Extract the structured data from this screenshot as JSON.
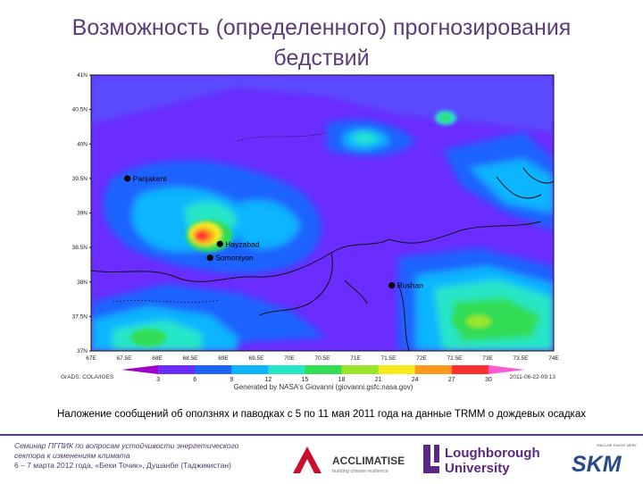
{
  "title_line1": "Возможность (определенного) прогнозирования",
  "title_line2": "бедствий",
  "map": {
    "lat_labels": [
      "41N",
      "40.5N",
      "40N",
      "39.5N",
      "39N",
      "38.5N",
      "38N",
      "37.5N",
      "37N"
    ],
    "lon_labels": [
      "67E",
      "67.5E",
      "68E",
      "68.5E",
      "69E",
      "69.5E",
      "70E",
      "70.5E",
      "71E",
      "71.5E",
      "72E",
      "72.5E",
      "73E",
      "73.5E",
      "74E"
    ],
    "places": [
      {
        "name": "Panjakent",
        "lon": 67.55,
        "lat": 39.5
      },
      {
        "name": "Hayzabad",
        "lon": 68.95,
        "lat": 38.55
      },
      {
        "name": "Somoniyon",
        "lon": 68.8,
        "lat": 38.35
      },
      {
        "name": "Rushan",
        "lon": 71.55,
        "lat": 37.95
      }
    ],
    "colorbar_ticks": [
      "3",
      "6",
      "9",
      "12",
      "15",
      "18",
      "21",
      "24",
      "27",
      "30"
    ],
    "colorbar_colors": [
      "#a000c8",
      "#6a2cff",
      "#1e63ff",
      "#0fb4ff",
      "#27e6c8",
      "#33dd55",
      "#9be52a",
      "#f5ea1e",
      "#ff9a1e",
      "#ff3030",
      "#ff5ad2"
    ],
    "grads_label": "GrADS: COLA/IGES",
    "generated_label": "Generated by NASA's Giovanni (giovanni.gsfc.nasa.gov)",
    "date_label": "2011-06-22-09:13"
  },
  "caption": "Наложение сообщений об оползнях и паводках с 5 по 11 мая 2011 года на данные TRMM о дождевых осадках",
  "footer": {
    "seminar_line1": "Семинар ПГПИК по вопросам устойчивости энергетического",
    "seminar_line2": "сектора к изменениям климата",
    "seminar_line3": "6 – 7 марта 2012 года, «Бехи Точик», Душанбе (Таджикистан)",
    "acclimatise_text": "ACCLIMATISE",
    "acclimatise_sub": "building climate resilience",
    "lboro_line1": "Loughborough",
    "lboro_line2": "University",
    "skm_text": "SKM",
    "skm_tag": "SINCLAIR KNIGHT MERZ"
  }
}
